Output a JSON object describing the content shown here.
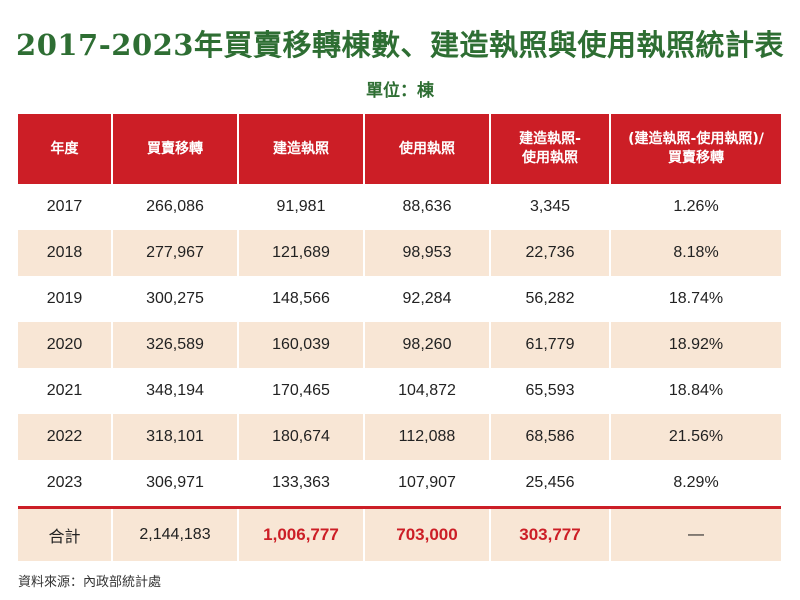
{
  "title": "2017-2023年買賣移轉棟數、建造執照與使用執照統計表",
  "unit": "單位：棟",
  "source": "資料來源：內政部統計處",
  "colors": {
    "title": "#2e6e33",
    "header_bg": "#cc1e26",
    "row_alt_bg": "#f8e6d5",
    "highlight_text": "#cc1e26"
  },
  "chart_data": {
    "type": "table",
    "columns": [
      [
        "年度"
      ],
      [
        "買賣移轉"
      ],
      [
        "建造執照"
      ],
      [
        "使用執照"
      ],
      [
        "建造執照-",
        "使用執照"
      ],
      [
        "(建造執照-使用執照)/",
        "買賣移轉"
      ]
    ],
    "rows": [
      [
        "2017",
        "266,086",
        "91,981",
        "88,636",
        "3,345",
        "1.26%"
      ],
      [
        "2018",
        "277,967",
        "121,689",
        "98,953",
        "22,736",
        "8.18%"
      ],
      [
        "2019",
        "300,275",
        "148,566",
        "92,284",
        "56,282",
        "18.74%"
      ],
      [
        "2020",
        "326,589",
        "160,039",
        "98,260",
        "61,779",
        "18.92%"
      ],
      [
        "2021",
        "348,194",
        "170,465",
        "104,872",
        "65,593",
        "18.84%"
      ],
      [
        "2022",
        "318,101",
        "180,674",
        "112,088",
        "68,586",
        "21.56%"
      ],
      [
        "2023",
        "306,971",
        "133,363",
        "107,907",
        "25,456",
        "8.29%"
      ]
    ],
    "total": [
      "合計",
      "2,144,183",
      "1,006,777",
      "703,000",
      "303,777",
      "—"
    ]
  }
}
